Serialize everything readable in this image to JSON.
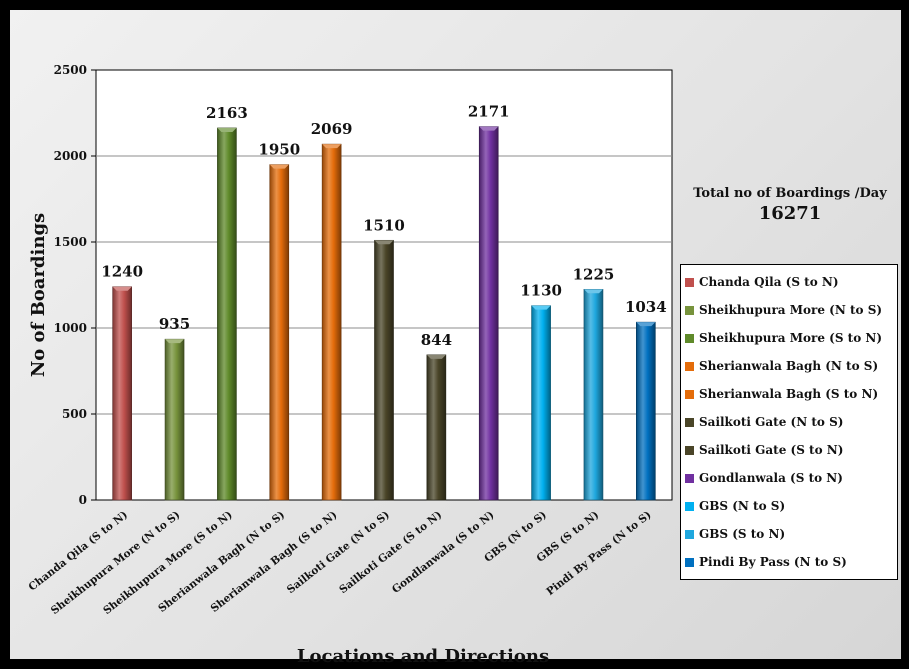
{
  "chart_data": {
    "type": "bar",
    "xlabel": "Locations and Directions",
    "ylabel": "No of Boardings",
    "ylim": [
      0,
      2500
    ],
    "yticks": [
      0,
      500,
      1000,
      1500,
      2000,
      2500
    ],
    "grid": true,
    "legend_placement": "right",
    "categories": [
      "Chanda Qila (S to N)",
      "Sheikhupura More (N to S)",
      "Sheikhupura More (S to N)",
      "Sherianwala Bagh (N to S)",
      "Sherianwala Bagh (S to N)",
      "Sailkoti Gate (N to S)",
      "Sailkoti Gate (S to N)",
      "Gondlanwala (S to N)",
      "GBS (N to S)",
      "GBS (S to N)",
      "Pindi By Pass (N to S)"
    ],
    "values": [
      1240,
      935,
      2163,
      1950,
      2069,
      1510,
      844,
      2171,
      1130,
      1225,
      1034
    ],
    "colors": [
      "#c0504d",
      "#77933c",
      "#5f8a2a",
      "#e46c0a",
      "#e46c0a",
      "#4a4528",
      "#4a4528",
      "#7030a0",
      "#00b0f0",
      "#1fa7de",
      "#0070c0"
    ],
    "legend": [
      "Chanda Qila (S to N)",
      "Sheikhupura More (N to S)",
      "Sheikhupura More (S to N)",
      "Sherianwala Bagh (N to S)",
      "Sherianwala Bagh (S to N)",
      "Sailkoti Gate  (N to S)",
      "Sailkoti Gate  (S to N)",
      "Gondlanwala (S to N)",
      "GBS (N to S)",
      "GBS (S to N)",
      "Pindi By Pass  (N to S)"
    ],
    "annotation": {
      "label": "Total no of Boardings /Day",
      "value": "16271"
    }
  }
}
